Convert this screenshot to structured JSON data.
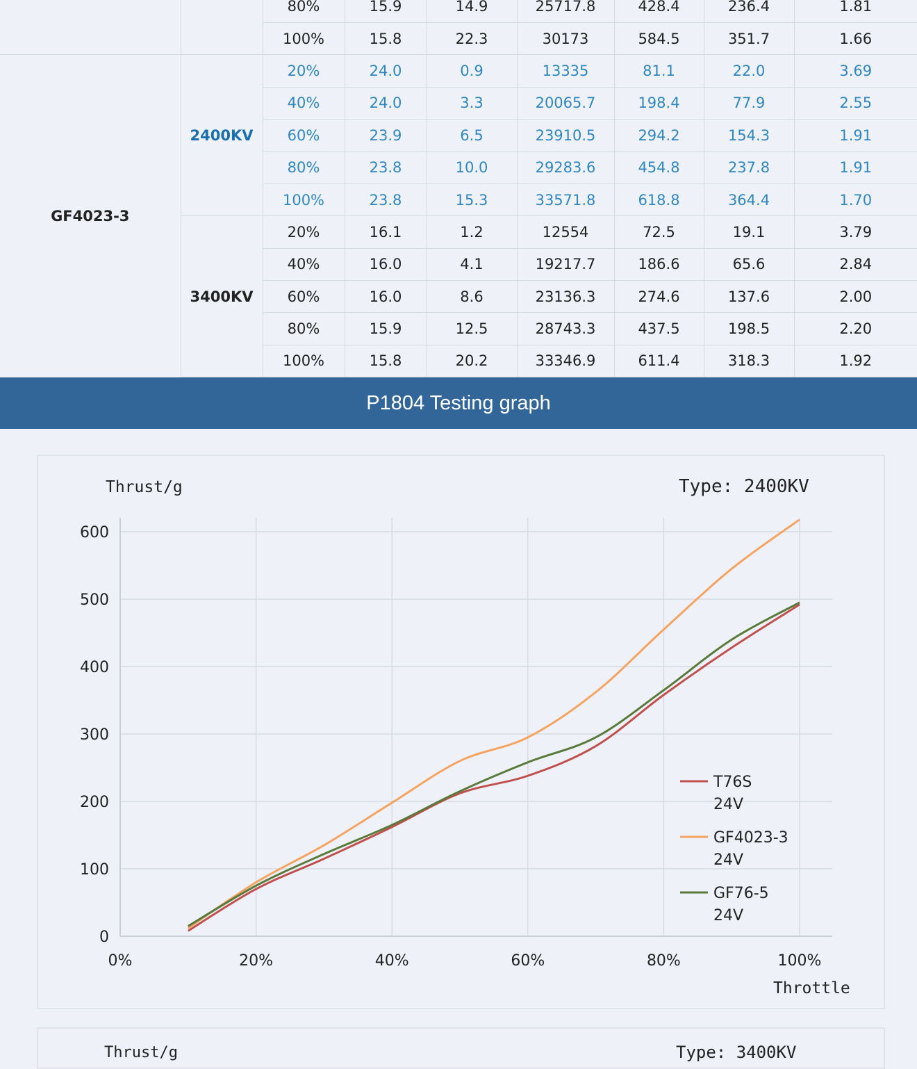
{
  "table": {
    "rows": [
      {
        "group": "prev",
        "throttle": "80%",
        "voltage": "15.9",
        "current": "14.9",
        "rpm": "25717.8",
        "thrust": "428.4",
        "power": "236.4",
        "efficiency": "1.81"
      },
      {
        "group": "prev",
        "throttle": "100%",
        "voltage": "15.8",
        "current": "22.3",
        "rpm": "30173",
        "thrust": "584.5",
        "power": "351.7",
        "efficiency": "1.66"
      },
      {
        "group": "2400",
        "throttle": "20%",
        "voltage": "24.0",
        "current": "0.9",
        "rpm": "13335",
        "thrust": "81.1",
        "power": "22.0",
        "efficiency": "3.69"
      },
      {
        "group": "2400",
        "throttle": "40%",
        "voltage": "24.0",
        "current": "3.3",
        "rpm": "20065.7",
        "thrust": "198.4",
        "power": "77.9",
        "efficiency": "2.55"
      },
      {
        "group": "2400",
        "throttle": "60%",
        "voltage": "23.9",
        "current": "6.5",
        "rpm": "23910.5",
        "thrust": "294.2",
        "power": "154.3",
        "efficiency": "1.91"
      },
      {
        "group": "2400",
        "throttle": "80%",
        "voltage": "23.8",
        "current": "10.0",
        "rpm": "29283.6",
        "thrust": "454.8",
        "power": "237.8",
        "efficiency": "1.91"
      },
      {
        "group": "2400",
        "throttle": "100%",
        "voltage": "23.8",
        "current": "15.3",
        "rpm": "33571.8",
        "thrust": "618.8",
        "power": "364.4",
        "efficiency": "1.70"
      },
      {
        "group": "3400",
        "throttle": "20%",
        "voltage": "16.1",
        "current": "1.2",
        "rpm": "12554",
        "thrust": "72.5",
        "power": "19.1",
        "efficiency": "3.79"
      },
      {
        "group": "3400",
        "throttle": "40%",
        "voltage": "16.0",
        "current": "4.1",
        "rpm": "19217.7",
        "thrust": "186.6",
        "power": "65.6",
        "efficiency": "2.84"
      },
      {
        "group": "3400",
        "throttle": "60%",
        "voltage": "16.0",
        "current": "8.6",
        "rpm": "23136.3",
        "thrust": "274.6",
        "power": "137.6",
        "efficiency": "2.00"
      },
      {
        "group": "3400",
        "throttle": "80%",
        "voltage": "15.9",
        "current": "12.5",
        "rpm": "28743.3",
        "thrust": "437.5",
        "power": "198.5",
        "efficiency": "2.20"
      },
      {
        "group": "3400",
        "throttle": "100%",
        "voltage": "15.8",
        "current": "20.2",
        "rpm": "33346.9",
        "thrust": "611.4",
        "power": "318.3",
        "efficiency": "1.92"
      }
    ],
    "model": "GF4023-3",
    "kv_2400": "2400KV",
    "kv_3400": "3400KV",
    "colors": {
      "highlight": "#2f86c0",
      "kv_highlight": "#1a6fb0"
    }
  },
  "banner": {
    "title": "P1804 Testing graph"
  },
  "chart_data": {
    "type": "line",
    "ylabel": "Thrust/g",
    "xlabel": "Throttle",
    "type_label": "Type:  2400KV",
    "ylim": [
      0,
      600
    ],
    "yticks": [
      "0",
      "100",
      "200",
      "300",
      "400",
      "500",
      "600"
    ],
    "xlim": [
      0,
      100
    ],
    "xticks": [
      "0%",
      "20%",
      "40%",
      "60%",
      "80%",
      "100%"
    ],
    "grid": true,
    "legend_position": "bottom-right",
    "series": [
      {
        "name": "T76S",
        "name2": "24V",
        "color": "#c0504d",
        "x": [
          10,
          20,
          30,
          40,
          50,
          60,
          70,
          80,
          90,
          100
        ],
        "values": [
          8,
          70,
          115,
          162,
          212,
          238,
          282,
          358,
          428,
          492
        ]
      },
      {
        "name": "GF4023-3",
        "name2": "24V",
        "color": "#f4a460",
        "x": [
          10,
          20,
          30,
          40,
          50,
          60,
          70,
          80,
          90,
          100
        ],
        "values": [
          12,
          80,
          135,
          198,
          260,
          295,
          362,
          455,
          545,
          618
        ]
      },
      {
        "name": "GF76-5",
        "name2": "24V",
        "color": "#5a7a3a",
        "x": [
          10,
          20,
          30,
          40,
          50,
          60,
          70,
          80,
          90,
          100
        ],
        "values": [
          15,
          75,
          122,
          165,
          215,
          258,
          295,
          365,
          440,
          495
        ]
      }
    ]
  },
  "chart2": {
    "ylabel": "Thrust/g",
    "type_label": "Type:  3400KV"
  }
}
